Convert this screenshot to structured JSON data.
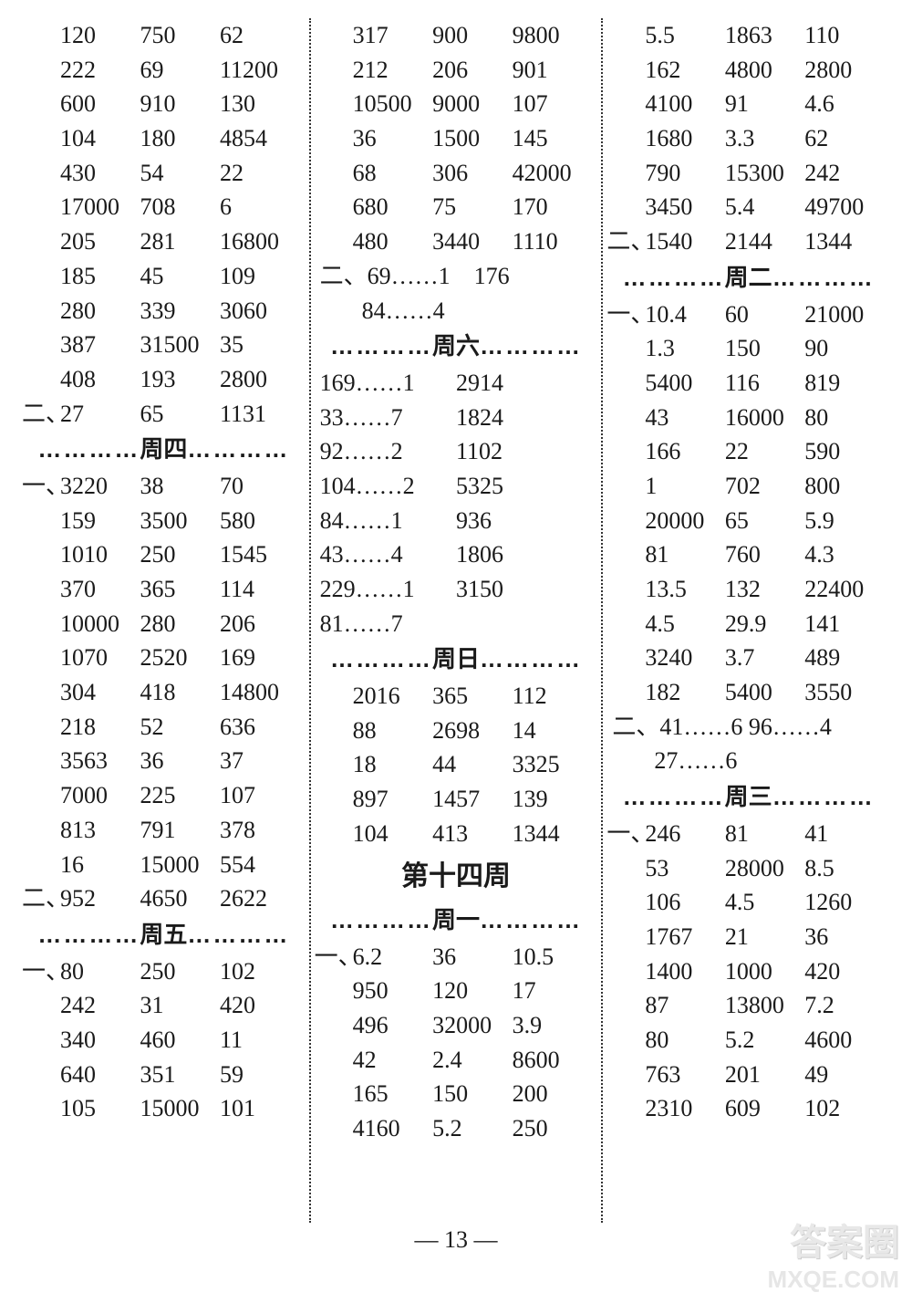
{
  "page_number": "— 13 —",
  "watermark": {
    "top": "答案圈",
    "bottom": "MXQE.COM"
  },
  "days": {
    "thu": "周四",
    "fri": "周五",
    "sat": "周六",
    "sun": "周日",
    "mon": "周一",
    "tue": "周二",
    "wed": "周三"
  },
  "weekTitle": "第十四周",
  "markers": {
    "one": "一、",
    "two": "二、"
  },
  "col1": {
    "topRows": [
      [
        "120",
        "750",
        "62"
      ],
      [
        "222",
        "69",
        "11200"
      ],
      [
        "600",
        "910",
        "130"
      ],
      [
        "104",
        "180",
        "4854"
      ],
      [
        "430",
        "54",
        "22"
      ],
      [
        "17000",
        "708",
        "6"
      ],
      [
        "205",
        "281",
        "16800"
      ],
      [
        "185",
        "45",
        "109"
      ],
      [
        "280",
        "339",
        "3060"
      ],
      [
        "387",
        "31500",
        "35"
      ],
      [
        "408",
        "193",
        "2800"
      ]
    ],
    "topTwoRow": [
      "27",
      "65",
      "1131"
    ],
    "thuOneRows": [
      [
        "3220",
        "38",
        "70"
      ],
      [
        "159",
        "3500",
        "580"
      ],
      [
        "1010",
        "250",
        "1545"
      ],
      [
        "370",
        "365",
        "114"
      ],
      [
        "10000",
        "280",
        "206"
      ],
      [
        "1070",
        "2520",
        "169"
      ],
      [
        "304",
        "418",
        "14800"
      ],
      [
        "218",
        "52",
        "636"
      ],
      [
        "3563",
        "36",
        "37"
      ],
      [
        "7000",
        "225",
        "107"
      ],
      [
        "813",
        "791",
        "378"
      ],
      [
        "16",
        "15000",
        "554"
      ]
    ],
    "thuTwoRow": [
      "952",
      "4650",
      "2622"
    ],
    "friOneRows": [
      [
        "80",
        "250",
        "102"
      ],
      [
        "242",
        "31",
        "420"
      ],
      [
        "340",
        "460",
        "11"
      ],
      [
        "640",
        "351",
        "59"
      ],
      [
        "105",
        "15000",
        "101"
      ]
    ]
  },
  "col2": {
    "topRows": [
      [
        "317",
        "900",
        "9800"
      ],
      [
        "212",
        "206",
        "901"
      ],
      [
        "10500",
        "9000",
        "107"
      ],
      [
        "36",
        "1500",
        "145"
      ],
      [
        "68",
        "306",
        "42000"
      ],
      [
        "680",
        "75",
        "170"
      ],
      [
        "480",
        "3440",
        "1110"
      ]
    ],
    "twoLine1": "二、69……1　176",
    "twoLine2": "84……4",
    "satPairs": [
      [
        "169……1",
        "2914"
      ],
      [
        "33……7",
        "1824"
      ],
      [
        "92……2",
        "1102"
      ],
      [
        "104……2",
        "5325"
      ],
      [
        "84……1",
        "936"
      ],
      [
        "43……4",
        "1806"
      ],
      [
        "229……1",
        "3150"
      ],
      [
        "81……7",
        ""
      ]
    ],
    "sunRows": [
      [
        "2016",
        "365",
        "112"
      ],
      [
        "88",
        "2698",
        "14"
      ],
      [
        "18",
        "44",
        "3325"
      ],
      [
        "897",
        "1457",
        "139"
      ],
      [
        "104",
        "413",
        "1344"
      ]
    ],
    "monOneRows": [
      [
        "6.2",
        "36",
        "10.5"
      ],
      [
        "950",
        "120",
        "17"
      ],
      [
        "496",
        "32000",
        "3.9"
      ],
      [
        "42",
        "2.4",
        "8600"
      ],
      [
        "165",
        "150",
        "200"
      ],
      [
        "4160",
        "5.2",
        "250"
      ]
    ]
  },
  "col3": {
    "topRows": [
      [
        "5.5",
        "1863",
        "110"
      ],
      [
        "162",
        "4800",
        "2800"
      ],
      [
        "4100",
        "91",
        "4.6"
      ],
      [
        "1680",
        "3.3",
        "62"
      ],
      [
        "790",
        "15300",
        "242"
      ],
      [
        "3450",
        "5.4",
        "49700"
      ]
    ],
    "topTwoRow": [
      "1540",
      "2144",
      "1344"
    ],
    "tueOneRows": [
      [
        "10.4",
        "60",
        "21000"
      ],
      [
        "1.3",
        "150",
        "90"
      ],
      [
        "5400",
        "116",
        "819"
      ],
      [
        "43",
        "16000",
        "80"
      ],
      [
        "166",
        "22",
        "590"
      ],
      [
        "1",
        "702",
        "800"
      ],
      [
        "20000",
        "65",
        "5.9"
      ],
      [
        "81",
        "760",
        "4.3"
      ],
      [
        "13.5",
        "132",
        "22400"
      ],
      [
        "4.5",
        "29.9",
        "141"
      ],
      [
        "3240",
        "3.7",
        "489"
      ],
      [
        "182",
        "5400",
        "3550"
      ]
    ],
    "tueTwoLine1": "二、41……6  96……4",
    "tueTwoLine2": "27……6",
    "wedOneRows": [
      [
        "246",
        "81",
        "41"
      ],
      [
        "53",
        "28000",
        "8.5"
      ],
      [
        "106",
        "4.5",
        "1260"
      ],
      [
        "1767",
        "21",
        "36"
      ],
      [
        "1400",
        "1000",
        "420"
      ],
      [
        "87",
        "13800",
        "7.2"
      ],
      [
        "80",
        "5.2",
        "4600"
      ],
      [
        "763",
        "201",
        "49"
      ],
      [
        "2310",
        "609",
        "102"
      ]
    ]
  }
}
